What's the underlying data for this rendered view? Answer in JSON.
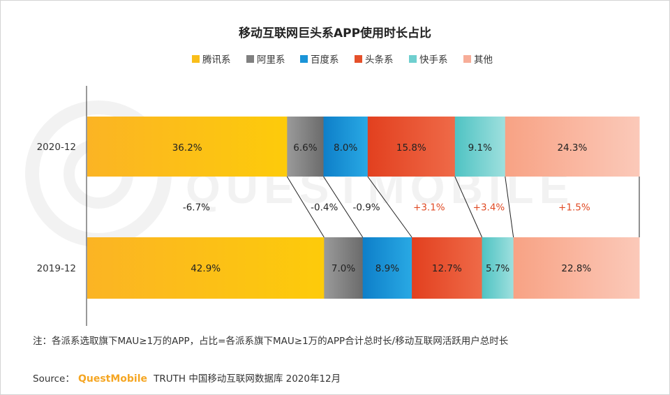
{
  "title": "移动互联网巨头系APP使用时长占比",
  "note": "注：各派系选取旗下MAU≥1万的APP，占比=各派系旗下MAU≥1万的APP合计总时长/移动互联网活跃用户总时长",
  "source": {
    "prefix": "Source：",
    "brand": "QuestMobile",
    "suffix": "TRUTH 中国移动互联网数据库 2020年12月"
  },
  "watermark": "QUESTMOBILE",
  "chart_data": {
    "type": "bar",
    "orientation": "horizontal",
    "stacked": true,
    "normalized": true,
    "title": "移动互联网巨头系APP使用时长占比",
    "categories": [
      "2020-12",
      "2019-12"
    ],
    "series": [
      {
        "name": "腾讯系",
        "color": "#f9be1a",
        "values": [
          36.2,
          42.9
        ],
        "labels": [
          "36.2%",
          "42.9%"
        ]
      },
      {
        "name": "阿里系",
        "color": "#808080",
        "values": [
          6.6,
          7.0
        ],
        "labels": [
          "6.6%",
          "7.0%"
        ]
      },
      {
        "name": "百度系",
        "color": "#1a94d8",
        "values": [
          8.0,
          8.9
        ],
        "labels": [
          "8.0%",
          "8.9%"
        ]
      },
      {
        "name": "头条系",
        "color": "#e5502a",
        "values": [
          15.8,
          12.7
        ],
        "labels": [
          "15.8%",
          "12.7%"
        ]
      },
      {
        "name": "快手系",
        "color": "#6fcfcf",
        "values": [
          9.1,
          5.7
        ],
        "labels": [
          "9.1%",
          "5.7%"
        ]
      },
      {
        "name": "其他",
        "color": "#f7ad98",
        "values": [
          24.3,
          22.8
        ],
        "labels": [
          "24.3%",
          "22.8%"
        ]
      }
    ],
    "changes": [
      {
        "series": "腾讯系",
        "label": "-6.7%",
        "color": "#222222"
      },
      {
        "series": "阿里系",
        "label": "-0.4%",
        "color": "#222222"
      },
      {
        "series": "百度系",
        "label": "-0.9%",
        "color": "#222222"
      },
      {
        "series": "头条系",
        "label": "+3.1%",
        "color": "#e04a24"
      },
      {
        "series": "快手系",
        "label": "+3.4%",
        "color": "#e04a24"
      },
      {
        "series": "其他",
        "label": "+1.5%",
        "color": "#e04a24"
      }
    ],
    "xlim": [
      0,
      100
    ],
    "legend_position": "top",
    "grid": false
  }
}
